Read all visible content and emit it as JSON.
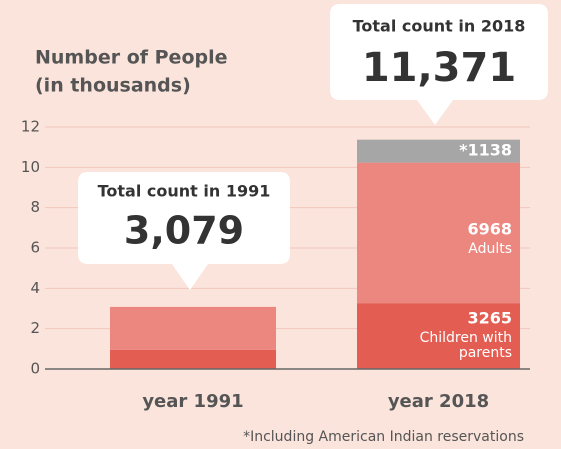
{
  "chart_data": {
    "type": "stacked_bar",
    "title": "Number of People",
    "subtitle": "(in thousands)",
    "categories": [
      "year 1991",
      "year 2018"
    ],
    "series": [
      {
        "name": "Children with parents",
        "color": "#e35d52",
        "values": [
          0.95,
          3.265
        ],
        "value_labels": [
          null,
          "3265"
        ]
      },
      {
        "name": "Adults",
        "color": "#ec877f",
        "values": [
          2.129,
          6.968
        ],
        "value_labels": [
          null,
          "6968"
        ]
      },
      {
        "color": "#a6a6a6",
        "values": [
          null,
          1.138
        ],
        "value_labels": [
          null,
          "*1138"
        ]
      }
    ],
    "annotations": [
      {
        "title": "Total count in 1991",
        "text": "3,079"
      },
      {
        "title": "Total count in 2018",
        "text": "11,371"
      }
    ],
    "footnote": "*Including American Indian reservations",
    "ylim": [
      0,
      12
    ],
    "yticks": [
      0,
      2,
      4,
      6,
      8,
      10,
      12
    ],
    "grid": true
  }
}
